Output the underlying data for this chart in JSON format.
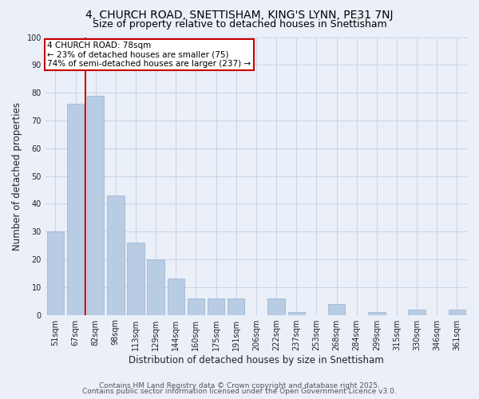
{
  "title": "4, CHURCH ROAD, SNETTISHAM, KING'S LYNN, PE31 7NJ",
  "subtitle": "Size of property relative to detached houses in Snettisham",
  "xlabel": "Distribution of detached houses by size in Snettisham",
  "ylabel": "Number of detached properties",
  "categories": [
    "51sqm",
    "67sqm",
    "82sqm",
    "98sqm",
    "113sqm",
    "129sqm",
    "144sqm",
    "160sqm",
    "175sqm",
    "191sqm",
    "206sqm",
    "222sqm",
    "237sqm",
    "253sqm",
    "268sqm",
    "284sqm",
    "299sqm",
    "315sqm",
    "330sqm",
    "346sqm",
    "361sqm"
  ],
  "values": [
    30,
    76,
    79,
    43,
    26,
    20,
    13,
    6,
    6,
    6,
    0,
    6,
    1,
    0,
    4,
    0,
    1,
    0,
    2,
    0,
    2
  ],
  "bar_color": "#b8cce4",
  "bar_edge_color": "#9ab0cc",
  "vline_color": "#cc0000",
  "vline_x": 1.5,
  "annotation_line1": "4 CHURCH ROAD: 78sqm",
  "annotation_line2": "← 23% of detached houses are smaller (75)",
  "annotation_line3": "74% of semi-detached houses are larger (237) →",
  "ylim": [
    0,
    100
  ],
  "yticks": [
    0,
    10,
    20,
    30,
    40,
    50,
    60,
    70,
    80,
    90,
    100
  ],
  "grid_color": "#c8d4e8",
  "bg_color": "#eaeff8",
  "footer_line1": "Contains HM Land Registry data © Crown copyright and database right 2025.",
  "footer_line2": "Contains public sector information licensed under the Open Government Licence v3.0.",
  "title_fontsize": 10,
  "subtitle_fontsize": 9,
  "tick_fontsize": 7,
  "label_fontsize": 8.5,
  "footer_fontsize": 6.5
}
